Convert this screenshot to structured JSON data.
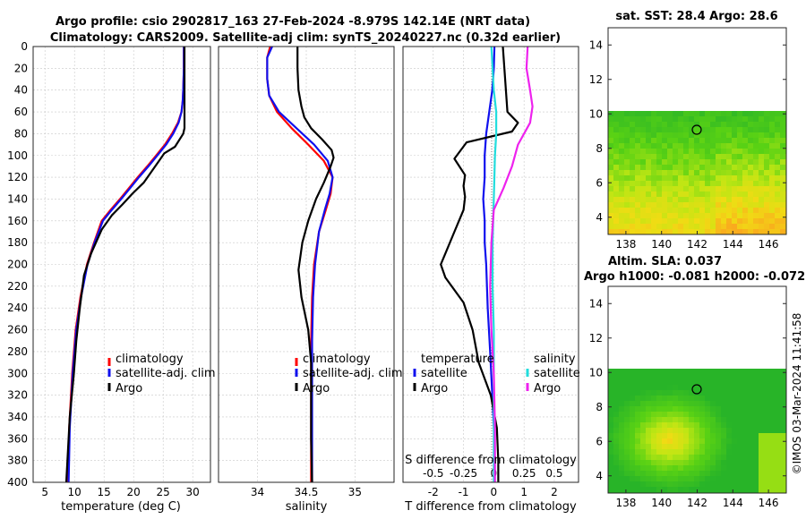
{
  "header": {
    "title_line1": "Argo profile: csio 2902817_163 27-Feb-2024 -8.979S 142.14E (NRT data)",
    "title_line2": "Climatology: CARS2009. Satellite-adj clim: synTS_20240227.nc (0.32d earlier)"
  },
  "footer": {
    "stamp": "©IMOS 03-Mar-2024 11:41:58"
  },
  "colors": {
    "climatology": "#ff0000",
    "satellite": "#1010ee",
    "argo": "#000000",
    "sat_salinity": "#22dddd",
    "argo_salinity": "#ee22ee"
  },
  "chart_data": [
    {
      "id": "temperature",
      "type": "line",
      "xlabel": "temperature (deg C)",
      "xlim": [
        3,
        33
      ],
      "xticks": [
        5,
        10,
        15,
        20,
        25,
        30
      ],
      "xtick_labels": [
        "5",
        "10",
        "15",
        "20",
        "25",
        "30"
      ],
      "ylim": [
        0,
        400
      ],
      "yticks": [
        0,
        20,
        40,
        60,
        80,
        100,
        120,
        140,
        160,
        180,
        200,
        220,
        240,
        260,
        280,
        300,
        320,
        340,
        360,
        380,
        400
      ],
      "ytick_labels": [
        "0",
        "20",
        "40",
        "60",
        "80",
        "100",
        "120",
        "140",
        "160",
        "180",
        "200",
        "220",
        "240",
        "260",
        "280",
        "300",
        "320",
        "340",
        "360",
        "380",
        "400"
      ],
      "legend": [
        "climatology",
        "satellite-adj. clim",
        "Argo"
      ],
      "series": [
        {
          "name": "climatology",
          "color": "#ff0000",
          "x": [
            28.5,
            28.5,
            28.4,
            28.3,
            28.1,
            27.5,
            26.5,
            25.3,
            23.8,
            22.3,
            20.7,
            19.2,
            17.7,
            16.1,
            14.6,
            13.3,
            12.1,
            11.0,
            10.2,
            9.6,
            9.1,
            8.9
          ],
          "depth": [
            0,
            20,
            40,
            50,
            60,
            70,
            80,
            90,
            100,
            110,
            120,
            130,
            140,
            150,
            160,
            180,
            200,
            230,
            260,
            300,
            350,
            400
          ]
        },
        {
          "name": "satellite-adj. clim",
          "color": "#1010ee",
          "x": [
            28.5,
            28.5,
            28.4,
            28.3,
            28.1,
            27.6,
            26.7,
            25.5,
            24.0,
            22.5,
            20.9,
            19.4,
            17.9,
            16.3,
            14.8,
            13.4,
            12.2,
            11.1,
            10.3,
            9.7,
            9.2,
            9.0
          ],
          "depth": [
            0,
            20,
            40,
            50,
            60,
            70,
            80,
            90,
            100,
            110,
            120,
            130,
            140,
            150,
            160,
            180,
            200,
            230,
            260,
            300,
            350,
            400
          ]
        },
        {
          "name": "Argo",
          "color": "#000000",
          "x": [
            28.6,
            28.6,
            28.6,
            28.6,
            28.6,
            28.6,
            28.4,
            27.0,
            25.2,
            24.3,
            23.0,
            21.7,
            19.8,
            18.1,
            16.3,
            14.6,
            12.8,
            11.6,
            10.9,
            10.3,
            9.9,
            9.2,
            8.8,
            8.6
          ],
          "depth": [
            0,
            20,
            40,
            60,
            70,
            75,
            80,
            92,
            98,
            105,
            115,
            125,
            135,
            145,
            155,
            168,
            190,
            210,
            240,
            270,
            300,
            340,
            380,
            400
          ]
        }
      ]
    },
    {
      "id": "salinity",
      "type": "line",
      "xlabel": "salinity",
      "xlim": [
        33.6,
        35.4
      ],
      "xticks": [
        34,
        34.5,
        35
      ],
      "xtick_labels": [
        "34",
        "34.5",
        "35"
      ],
      "ylim": [
        0,
        400
      ],
      "legend": [
        "climatology",
        "satellite-adj. clim",
        "Argo"
      ],
      "series": [
        {
          "name": "climatology",
          "color": "#ff0000",
          "x": [
            34.13,
            34.1,
            34.1,
            34.12,
            34.2,
            34.35,
            34.52,
            34.68,
            34.77,
            34.75,
            34.7,
            34.63,
            34.58,
            34.56,
            34.55,
            34.55,
            34.55
          ],
          "depth": [
            0,
            10,
            30,
            45,
            60,
            75,
            90,
            105,
            120,
            135,
            150,
            170,
            200,
            230,
            270,
            330,
            400
          ]
        },
        {
          "name": "satellite-adj. clim",
          "color": "#1010ee",
          "x": [
            34.15,
            34.1,
            34.1,
            34.12,
            34.22,
            34.4,
            34.58,
            34.72,
            34.77,
            34.74,
            34.69,
            34.63,
            34.59,
            34.57,
            34.56,
            34.56,
            34.56
          ],
          "depth": [
            0,
            10,
            30,
            45,
            60,
            75,
            90,
            105,
            120,
            135,
            150,
            170,
            200,
            230,
            270,
            330,
            400
          ]
        },
        {
          "name": "Argo",
          "color": "#000000",
          "x": [
            34.41,
            34.41,
            34.42,
            34.45,
            34.48,
            34.55,
            34.66,
            34.76,
            34.78,
            34.75,
            34.68,
            34.6,
            34.52,
            34.46,
            34.42,
            34.45,
            34.52,
            34.55,
            34.55,
            34.55,
            34.56
          ],
          "depth": [
            0,
            20,
            40,
            55,
            65,
            75,
            85,
            95,
            102,
            110,
            125,
            140,
            160,
            180,
            205,
            230,
            260,
            290,
            320,
            360,
            400
          ]
        }
      ]
    },
    {
      "id": "difference",
      "type": "line",
      "xlabel": "T difference from climatology",
      "xlim": [
        -3,
        2.8
      ],
      "xticks": [
        -2,
        -1,
        0,
        1,
        2
      ],
      "xtick_labels": [
        "-2",
        "-1",
        "0",
        "1",
        "2"
      ],
      "top_label": "S difference from climatology",
      "s_ticks": [
        -0.5,
        -0.25,
        0,
        0.25,
        0.5
      ],
      "s_tick_labels": [
        "-0.5",
        "-0.25",
        "0",
        "0.25",
        "0.5"
      ],
      "s_scale": 4,
      "ylim": [
        0,
        400
      ],
      "legend_t_title": "temperature",
      "legend_s_title": "salinity",
      "legend_t": [
        "satellite",
        "Argo"
      ],
      "legend_s": [
        "satellite",
        "Argo"
      ],
      "series": [
        {
          "name": "T satellite",
          "color": "#1010ee",
          "scale": "T",
          "x": [
            0.02,
            0.0,
            -0.05,
            -0.15,
            -0.25,
            -0.3,
            -0.3,
            -0.35,
            -0.3,
            -0.3,
            -0.25,
            -0.2,
            -0.12,
            -0.05,
            0.02,
            0.02
          ],
          "depth": [
            0,
            20,
            40,
            60,
            80,
            100,
            120,
            140,
            160,
            180,
            200,
            240,
            280,
            320,
            360,
            400
          ]
        },
        {
          "name": "T Argo",
          "color": "#000000",
          "scale": "T",
          "x": [
            0.3,
            0.35,
            0.4,
            0.45,
            0.8,
            0.6,
            -0.9,
            -1.3,
            -0.95,
            -1.0,
            -0.95,
            -1.0,
            -1.3,
            -1.6,
            -1.75,
            -1.6,
            -1.0,
            -0.7,
            -0.5,
            -0.1,
            0.1,
            0.15,
            0.15
          ],
          "depth": [
            0,
            20,
            40,
            60,
            70,
            78,
            88,
            103,
            118,
            128,
            138,
            150,
            170,
            190,
            200,
            212,
            235,
            260,
            290,
            320,
            350,
            380,
            400
          ]
        },
        {
          "name": "S satellite",
          "color": "#22dddd",
          "scale": "S",
          "x": [
            -0.02,
            -0.01,
            0.0,
            0.02,
            0.02,
            0.01,
            0.0,
            -0.01,
            -0.01,
            0.0,
            0.0,
            0.0
          ],
          "depth": [
            0,
            20,
            40,
            60,
            80,
            100,
            140,
            180,
            220,
            260,
            320,
            400
          ]
        },
        {
          "name": "S Argo",
          "color": "#ee22ee",
          "scale": "S",
          "x": [
            0.28,
            0.27,
            0.3,
            0.32,
            0.3,
            0.2,
            0.15,
            0.08,
            0.0,
            -0.02,
            -0.03,
            -0.02,
            0.0,
            0.01,
            0.01
          ],
          "depth": [
            0,
            20,
            40,
            55,
            70,
            90,
            110,
            130,
            150,
            180,
            220,
            260,
            300,
            350,
            400
          ]
        }
      ]
    },
    {
      "id": "sst-map",
      "type": "heatmap",
      "title": "sat. SST: 28.4 Argo: 28.6",
      "xlim": [
        137,
        147
      ],
      "ylim": [
        3,
        15
      ],
      "xticks": [
        138,
        140,
        142,
        144,
        146
      ],
      "xtick_labels": [
        "138",
        "140",
        "142",
        "144",
        "146"
      ],
      "yticks": [
        4,
        6,
        8,
        10,
        12,
        14
      ],
      "ytick_labels": [
        "4",
        "6",
        "8",
        "10",
        "12",
        "14"
      ],
      "data_top_lat": 10,
      "marker": [
        142.14,
        -8.979
      ],
      "marker_plot_lat": 9.0
    },
    {
      "id": "sla-map",
      "type": "heatmap",
      "title": "Altim. SLA: 0.037",
      "subtitle": "Argo h1000: -0.081 h2000: -0.072",
      "xlim": [
        137,
        147
      ],
      "ylim": [
        3,
        15
      ],
      "xticks": [
        138,
        140,
        142,
        144,
        146
      ],
      "xtick_labels": [
        "138",
        "140",
        "142",
        "144",
        "146"
      ],
      "yticks": [
        4,
        6,
        8,
        10,
        12,
        14
      ],
      "ytick_labels": [
        "4",
        "6",
        "8",
        "10",
        "12",
        "14"
      ],
      "data_top_lat": 10,
      "marker": [
        142.14,
        -8.979
      ],
      "marker_plot_lat": 9.0
    }
  ]
}
